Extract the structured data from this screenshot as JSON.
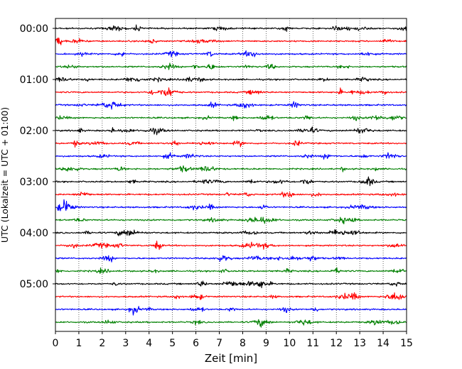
{
  "chart_data": {
    "type": "line",
    "subtype": "helicorder",
    "xlabel": "Zeit  [min]",
    "ylabel": "UTC (Lokalzeit = UTC + 01:00)",
    "xlim": [
      0,
      15
    ],
    "x_ticks": [
      "0",
      "1",
      "2",
      "3",
      "4",
      "5",
      "6",
      "7",
      "8",
      "9",
      "10",
      "11",
      "12",
      "13",
      "14",
      "15"
    ],
    "y_ticks": [
      "00:00",
      "01:00",
      "02:00",
      "03:00",
      "04:00",
      "05:00"
    ],
    "grid": "vertical dotted at each minute",
    "trace_colors": [
      "#000000",
      "#ff0000",
      "#0000ff",
      "#008000"
    ],
    "traces": [
      {
        "start": "00:00",
        "color": "#000000"
      },
      {
        "start": "00:15",
        "color": "#ff0000"
      },
      {
        "start": "00:30",
        "color": "#0000ff"
      },
      {
        "start": "00:45",
        "color": "#008000"
      },
      {
        "start": "01:00",
        "color": "#000000"
      },
      {
        "start": "01:15",
        "color": "#ff0000"
      },
      {
        "start": "01:30",
        "color": "#0000ff"
      },
      {
        "start": "01:45",
        "color": "#008000"
      },
      {
        "start": "02:00",
        "color": "#000000"
      },
      {
        "start": "02:15",
        "color": "#ff0000"
      },
      {
        "start": "02:30",
        "color": "#0000ff"
      },
      {
        "start": "02:45",
        "color": "#008000"
      },
      {
        "start": "03:00",
        "color": "#000000"
      },
      {
        "start": "03:15",
        "color": "#ff0000"
      },
      {
        "start": "03:30",
        "color": "#0000ff"
      },
      {
        "start": "03:45",
        "color": "#008000"
      },
      {
        "start": "04:00",
        "color": "#000000"
      },
      {
        "start": "04:15",
        "color": "#ff0000"
      },
      {
        "start": "04:30",
        "color": "#0000ff"
      },
      {
        "start": "04:45",
        "color": "#008000"
      },
      {
        "start": "05:00",
        "color": "#000000"
      },
      {
        "start": "05:15",
        "color": "#ff0000"
      },
      {
        "start": "05:30",
        "color": "#0000ff"
      },
      {
        "start": "05:45",
        "color": "#008000"
      }
    ]
  }
}
